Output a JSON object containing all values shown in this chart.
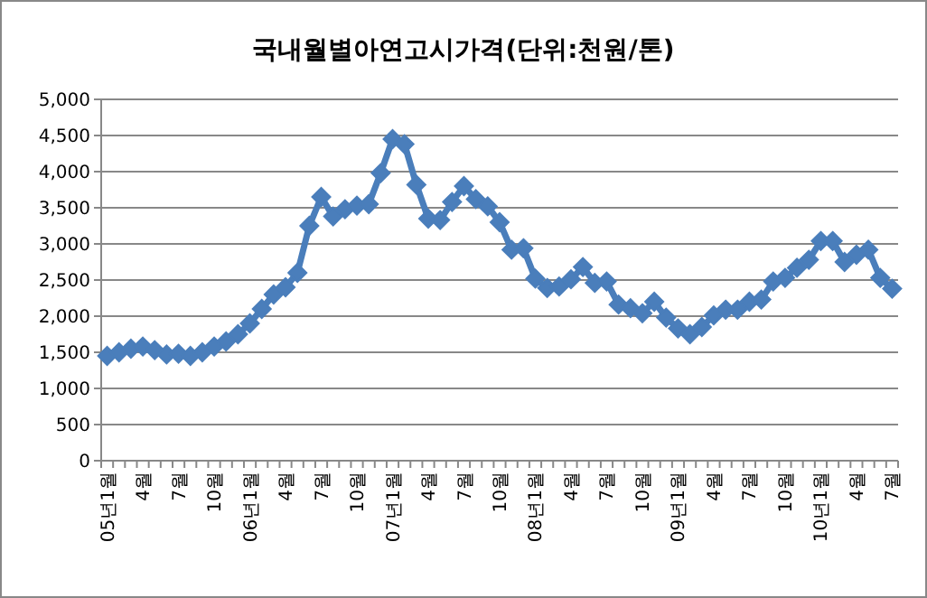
{
  "chart_data": {
    "type": "line",
    "title": "국내월별아연고시가격(단위:천원/톤)",
    "categories": [
      "05년1월",
      null,
      null,
      "4월",
      null,
      null,
      "7월",
      null,
      null,
      "10월",
      null,
      null,
      "06년1월",
      null,
      null,
      "4월",
      null,
      null,
      "7월",
      null,
      null,
      "10월",
      null,
      null,
      "07년1월",
      null,
      null,
      "4월",
      null,
      null,
      "7월",
      null,
      null,
      "10월",
      null,
      null,
      "08년1월",
      null,
      null,
      "4월",
      null,
      null,
      "7월",
      null,
      null,
      "10월",
      null,
      null,
      "09년1월",
      null,
      null,
      "4월",
      null,
      null,
      "7월",
      null,
      null,
      "10월",
      null,
      null,
      "10년1월",
      null,
      null,
      "4월",
      null,
      null,
      "7월"
    ],
    "series": [
      {
        "color": "#4a7ebb",
        "values": [
          1450,
          1500,
          1550,
          1580,
          1530,
          1470,
          1480,
          1450,
          1500,
          1580,
          1650,
          1750,
          1900,
          2100,
          2300,
          2400,
          2600,
          3250,
          3650,
          3380,
          3480,
          3530,
          3550,
          3980,
          4450,
          4380,
          3820,
          3350,
          3330,
          3580,
          3800,
          3620,
          3520,
          3300,
          2920,
          2940,
          2520,
          2390,
          2410,
          2510,
          2680,
          2460,
          2480,
          2160,
          2110,
          2040,
          2200,
          1980,
          1830,
          1750,
          1850,
          2010,
          2090,
          2090,
          2200,
          2230,
          2480,
          2530,
          2670,
          2780,
          3040,
          3040,
          2750,
          2850,
          2920,
          2530,
          2380
        ]
      }
    ],
    "ylim": [
      0,
      5000
    ],
    "yticks": [
      0,
      {
        "value": 500,
        "label": "500"
      },
      {
        "value": 1000,
        "label": "1,000"
      },
      {
        "value": 1500,
        "label": "1,500"
      },
      {
        "value": 2000,
        "label": "2,000"
      },
      {
        "value": 2500,
        "label": "2,500"
      },
      {
        "value": 3000,
        "label": "3,000"
      },
      {
        "value": 3500,
        "label": "3,500"
      },
      {
        "value": 4000,
        "label": "4,000"
      },
      {
        "value": 4500,
        "label": "4,500"
      },
      {
        "value": 5000,
        "label": "5,000"
      }
    ],
    "grid": "y",
    "marker": "diamond",
    "line_style": "solid"
  }
}
